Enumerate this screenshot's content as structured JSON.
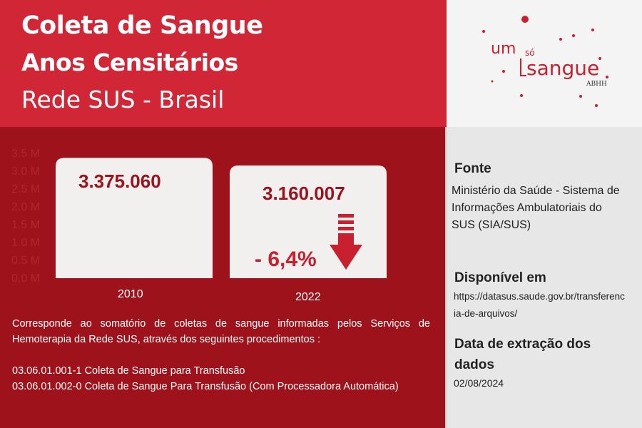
{
  "header": {
    "title_line1": "Coleta de Sangue",
    "title_line2": "Anos Censitários",
    "title_line3": "Rede SUS - Brasil"
  },
  "logo": {
    "word_um": "um",
    "word_so": "só",
    "word_sangue": "sangue",
    "org": "ABHH"
  },
  "colors": {
    "header_red": "#d02636",
    "main_dark_red": "#9e121c",
    "bar_fill": "#f2f0ee",
    "arrow_red": "#c8202e"
  },
  "chart_data": {
    "type": "bar",
    "categories": [
      "2010",
      "2022"
    ],
    "values": [
      3375060,
      3160007
    ],
    "data_labels": [
      "3.375.060",
      "3.160.007"
    ],
    "ytick_labels": [
      "0.0 M",
      "0.5 M",
      "1.0 M",
      "1.5 M",
      "2.0 M",
      "2.5 M",
      "3.0 M",
      "3.5 M"
    ],
    "ylim": [
      0,
      3500000
    ],
    "change_label": "- 6,4%",
    "change_icon": "arrow-down-icon",
    "title": "",
    "xlabel": "",
    "ylabel": ""
  },
  "description": {
    "text": "Corresponde ao somatório de coletas de sangue informadas pelos Serviços de Hemoterapia da Rede SUS, através dos seguintes procedimentos :",
    "procedures": [
      "03.06.01.001-1   Coleta de Sangue para Transfusão",
      "03.06.01.002-0 Coleta de Sangue Para Transfusão (Com Processadora Automática)"
    ]
  },
  "sidebar": {
    "fonte_heading": "Fonte",
    "fonte_text": "Ministério da Saúde - Sistema de Informações Ambulatoriais do SUS (SIA/SUS)",
    "disponivel_heading": "Disponível em",
    "disponivel_url": "https://datasus.saude.gov.br/transferencia-de-arquivos/",
    "data_heading": "Data de extração dos dados",
    "data_value": "02/08/2024"
  }
}
